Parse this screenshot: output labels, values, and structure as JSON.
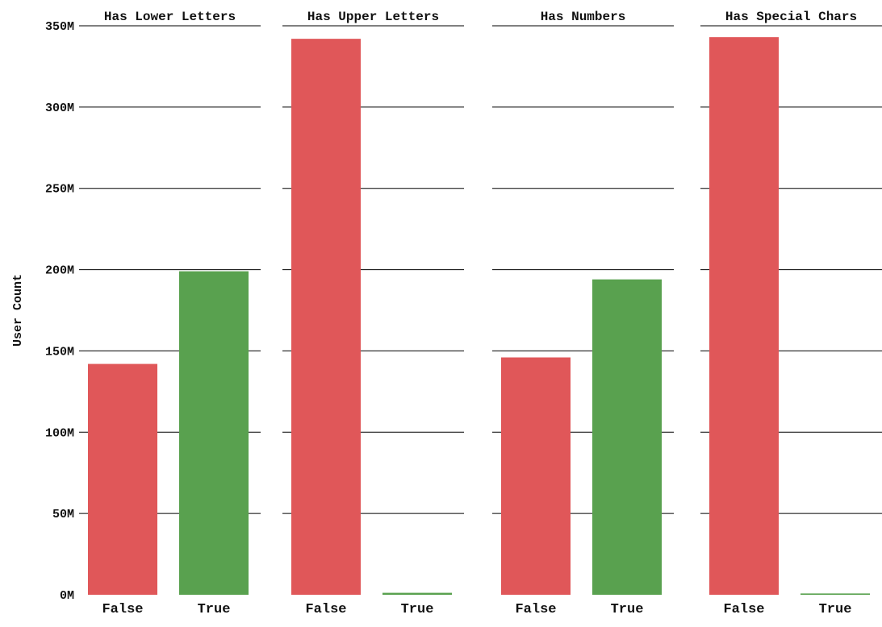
{
  "chart_data": {
    "type": "bar",
    "ylabel": "User Count",
    "ylim": [
      0,
      350000000
    ],
    "y_ticks": [
      0,
      50000000,
      100000000,
      150000000,
      200000000,
      250000000,
      300000000,
      350000000
    ],
    "y_tick_labels": [
      "0M",
      "50M",
      "100M",
      "150M",
      "200M",
      "250M",
      "300M",
      "350M"
    ],
    "grid": "horizontal",
    "categories": [
      "False",
      "True"
    ],
    "colors": {
      "False": "#e05759",
      "True": "#59a14f"
    },
    "panels": [
      {
        "title": "Has Lower Letters",
        "values": [
          142000000,
          199000000
        ]
      },
      {
        "title": "Has Upper Letters",
        "values": [
          342000000,
          1200000
        ]
      },
      {
        "title": "Has Numbers",
        "values": [
          146000000,
          194000000
        ]
      },
      {
        "title": "Has Special Chars",
        "values": [
          343000000,
          800000
        ]
      }
    ]
  }
}
